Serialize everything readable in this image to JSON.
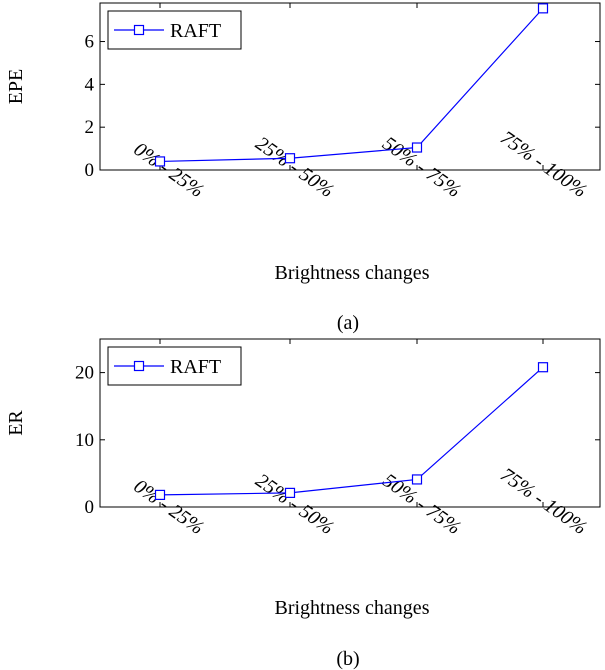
{
  "chart_data": [
    {
      "type": "line",
      "panel_caption": "(a)",
      "xlabel": "Brightness changes",
      "ylabel": "EPE",
      "categories": [
        "0% - 25%",
        "25% - 50%",
        "50% - 75%",
        "75% - 100%"
      ],
      "ylim": [
        0,
        7.8
      ],
      "yticks": [
        0,
        2,
        4,
        6
      ],
      "grid": false,
      "legend_position": "top-left",
      "series": [
        {
          "name": "RAFT",
          "color": "#0000ff",
          "marker": "square",
          "values": [
            0.4,
            0.55,
            1.05,
            7.55
          ]
        }
      ]
    },
    {
      "type": "line",
      "panel_caption": "(b)",
      "xlabel": "Brightness changes",
      "ylabel": "ER",
      "categories": [
        "0% - 25%",
        "25% - 50%",
        "50% - 75%",
        "75% - 100%"
      ],
      "ylim": [
        0,
        25
      ],
      "yticks": [
        0,
        10,
        20
      ],
      "grid": false,
      "legend_position": "top-left",
      "series": [
        {
          "name": "RAFT",
          "color": "#0000ff",
          "marker": "square",
          "values": [
            1.8,
            2.1,
            4.1,
            20.8
          ]
        }
      ]
    }
  ]
}
